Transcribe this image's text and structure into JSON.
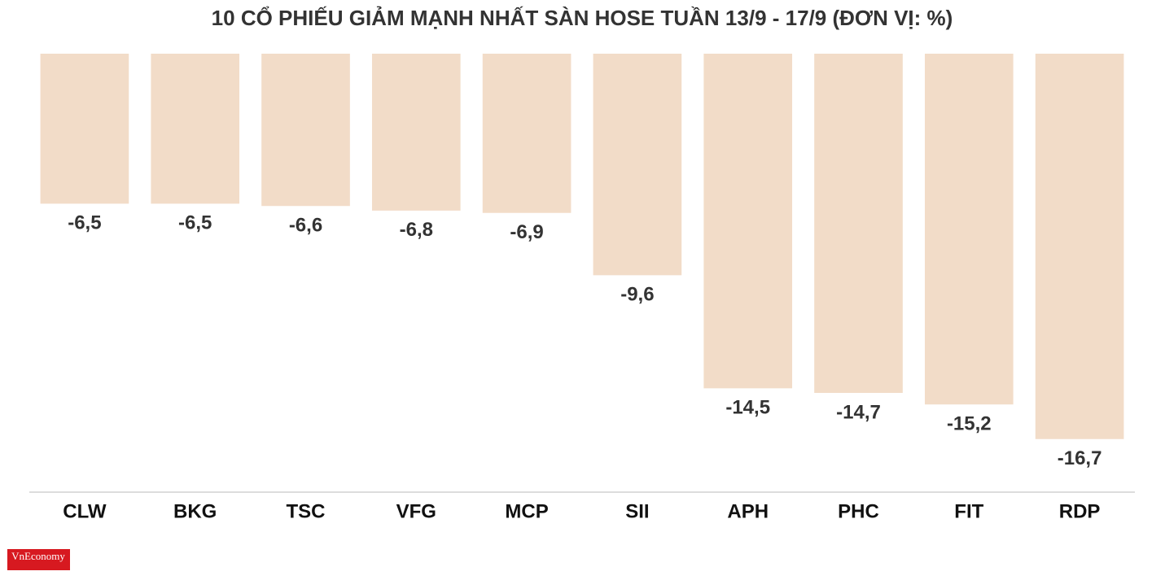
{
  "chart_data": {
    "type": "bar",
    "title": "10 CỔ PHIẾU GIẢM MẠNH NHẤT SÀN HOSE TUẦN 13/9 - 17/9 (ĐƠN VỊ: %)",
    "categories": [
      "CLW",
      "BKG",
      "TSC",
      "VFG",
      "MCP",
      "SII",
      "APH",
      "PHC",
      "FIT",
      "RDP"
    ],
    "values": [
      -6.5,
      -6.5,
      -6.6,
      -6.8,
      -6.9,
      -9.6,
      -14.5,
      -14.7,
      -15.2,
      -16.7
    ],
    "value_labels": [
      "-6,5",
      "-6,5",
      "-6,6",
      "-6,8",
      "-6,9",
      "-9,6",
      "-14,5",
      "-14,7",
      "-15,2",
      "-16,7"
    ],
    "color": "#f2dcc8",
    "ylim": [
      -19,
      0
    ],
    "logo": "VnEconomy"
  }
}
